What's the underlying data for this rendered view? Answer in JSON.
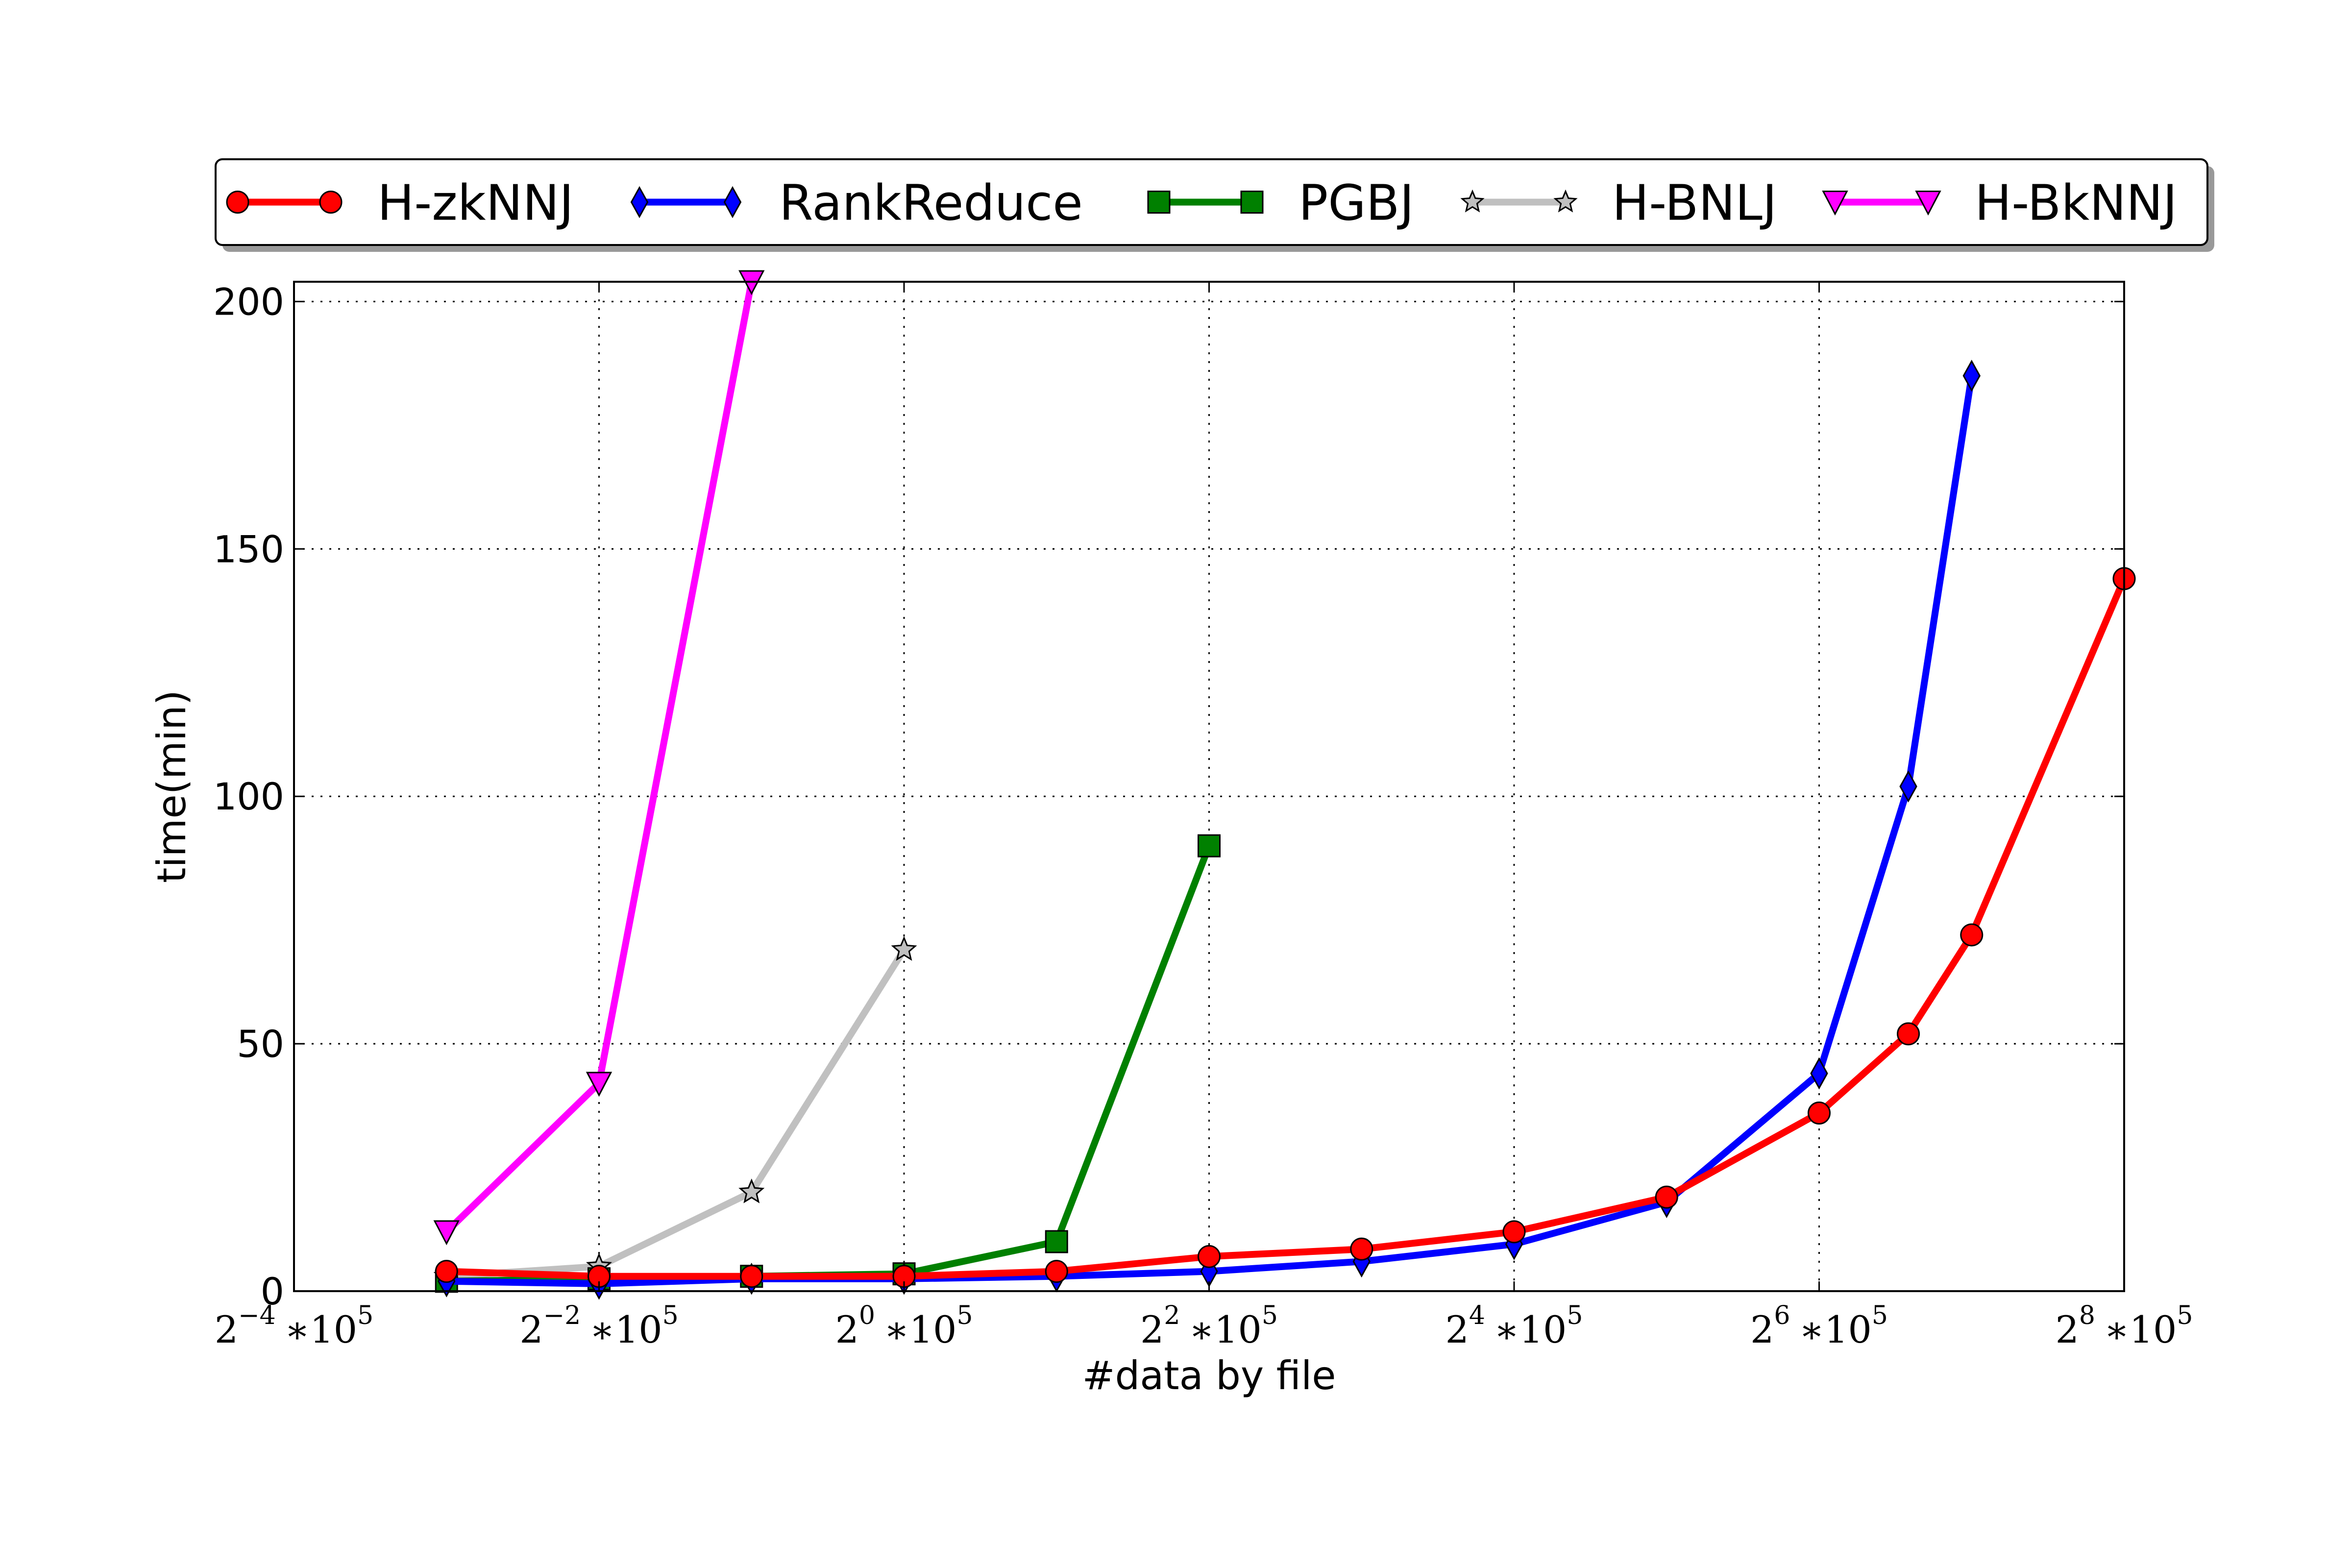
{
  "chart_data": {
    "type": "line",
    "xlabel": "#data by file",
    "ylabel": "time(min)",
    "x_scale": "log2",
    "xlim": [
      0.0625,
      256
    ],
    "ylim": [
      0,
      204
    ],
    "grid": true,
    "legend_position": "top-outside",
    "x_ticks": [
      {
        "value": 0.0625,
        "base": "2",
        "exp": "−4",
        "suffix": "∗10",
        "suffix_exp": "5"
      },
      {
        "value": 0.25,
        "base": "2",
        "exp": "−2",
        "suffix": "∗10",
        "suffix_exp": "5"
      },
      {
        "value": 1,
        "base": "2",
        "exp": "0",
        "suffix": "∗10",
        "suffix_exp": "5"
      },
      {
        "value": 4,
        "base": "2",
        "exp": "2",
        "suffix": "∗10",
        "suffix_exp": "5"
      },
      {
        "value": 16,
        "base": "2",
        "exp": "4",
        "suffix": "∗10",
        "suffix_exp": "5"
      },
      {
        "value": 64,
        "base": "2",
        "exp": "6",
        "suffix": "∗10",
        "suffix_exp": "5"
      },
      {
        "value": 256,
        "base": "2",
        "exp": "8",
        "suffix": "∗10",
        "suffix_exp": "5"
      }
    ],
    "y_ticks": [
      {
        "value": 0,
        "label": "0"
      },
      {
        "value": 50,
        "label": "50"
      },
      {
        "value": 100,
        "label": "100"
      },
      {
        "value": 150,
        "label": "150"
      },
      {
        "value": 200,
        "label": "200"
      }
    ],
    "series": [
      {
        "name": "H-zkNNJ",
        "color": "#ff0000",
        "marker": "circle",
        "x": [
          0.125,
          0.25,
          0.5,
          1,
          2,
          4,
          8,
          16,
          32,
          64,
          96,
          128,
          256
        ],
        "y": [
          4,
          3,
          3,
          3,
          4,
          7,
          8.5,
          12,
          19,
          36,
          52,
          72,
          144
        ]
      },
      {
        "name": "RankReduce",
        "color": "#0000ff",
        "marker": "diamond",
        "x": [
          0.125,
          0.25,
          0.5,
          1,
          2,
          4,
          8,
          16,
          32,
          64,
          96,
          128
        ],
        "y": [
          2,
          1.5,
          2.5,
          2.5,
          3,
          4,
          6,
          9.5,
          18,
          44,
          102,
          185
        ]
      },
      {
        "name": "PGBJ",
        "color": "#008000",
        "marker": "square",
        "x": [
          0.125,
          0.25,
          0.5,
          1,
          2,
          4
        ],
        "y": [
          2,
          2.5,
          3,
          3.5,
          10,
          90
        ]
      },
      {
        "name": "H-BNLJ",
        "color": "#c0c0c0",
        "marker": "star",
        "x": [
          0.125,
          0.25,
          0.5,
          1
        ],
        "y": [
          3,
          5,
          20,
          69
        ]
      },
      {
        "name": "H-BkNNJ",
        "color": "#ff00ff",
        "marker": "triangle-down",
        "x": [
          0.125,
          0.25,
          0.5
        ],
        "y": [
          12,
          42,
          204
        ]
      }
    ]
  }
}
